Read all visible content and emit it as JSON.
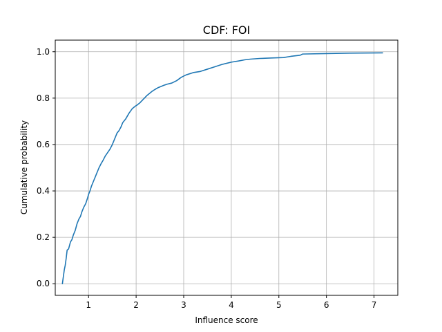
{
  "chart_data": {
    "type": "line",
    "title": "CDF: FOI",
    "xlabel": "Influence score",
    "ylabel": "Cumulative probability",
    "xlim": [
      0.3,
      7.5
    ],
    "ylim": [
      -0.05,
      1.05
    ],
    "xticks": [
      1,
      2,
      3,
      4,
      5,
      6,
      7
    ],
    "yticks": [
      0.0,
      0.2,
      0.4,
      0.6,
      0.8,
      1.0
    ],
    "xtick_labels": [
      "1",
      "2",
      "3",
      "4",
      "5",
      "6",
      "7"
    ],
    "ytick_labels": [
      "0.0",
      "0.2",
      "0.4",
      "0.6",
      "0.8",
      "1.0"
    ],
    "grid": true,
    "line_color": "#1f77b4",
    "grid_color": "#b0b0b0",
    "series": [
      {
        "x": [
          0.45,
          0.47,
          0.49,
          0.51,
          0.53,
          0.55,
          0.58,
          0.62,
          0.65,
          0.68,
          0.72,
          0.76,
          0.8,
          0.83,
          0.86,
          0.9,
          0.94,
          0.98,
          1.0,
          1.03,
          1.06,
          1.1,
          1.14,
          1.18,
          1.22,
          1.27,
          1.3,
          1.35,
          1.4,
          1.45,
          1.5,
          1.55,
          1.6,
          1.64,
          1.68,
          1.72,
          1.78,
          1.85,
          1.92,
          1.98,
          2.02,
          2.08,
          2.15,
          2.22,
          2.28,
          2.34,
          2.4,
          2.46,
          2.52,
          2.58,
          2.65,
          2.75,
          2.85,
          2.95,
          3.05,
          3.2,
          3.35,
          3.5,
          3.65,
          3.8,
          3.9,
          4.0,
          4.15,
          4.28,
          4.4,
          4.6,
          4.85,
          5.1,
          5.25,
          5.45,
          5.5,
          6.0,
          6.5,
          7.18
        ],
        "y": [
          0.0,
          0.03,
          0.06,
          0.08,
          0.11,
          0.145,
          0.15,
          0.18,
          0.19,
          0.21,
          0.23,
          0.26,
          0.28,
          0.29,
          0.31,
          0.33,
          0.345,
          0.37,
          0.385,
          0.4,
          0.42,
          0.44,
          0.46,
          0.48,
          0.5,
          0.52,
          0.53,
          0.55,
          0.565,
          0.58,
          0.6,
          0.625,
          0.65,
          0.66,
          0.675,
          0.695,
          0.71,
          0.735,
          0.755,
          0.765,
          0.77,
          0.78,
          0.795,
          0.81,
          0.82,
          0.83,
          0.838,
          0.845,
          0.85,
          0.855,
          0.86,
          0.865,
          0.875,
          0.89,
          0.9,
          0.91,
          0.915,
          0.925,
          0.935,
          0.945,
          0.95,
          0.955,
          0.96,
          0.965,
          0.968,
          0.971,
          0.973,
          0.975,
          0.98,
          0.985,
          0.99,
          0.992,
          0.994,
          0.995
        ]
      }
    ]
  }
}
